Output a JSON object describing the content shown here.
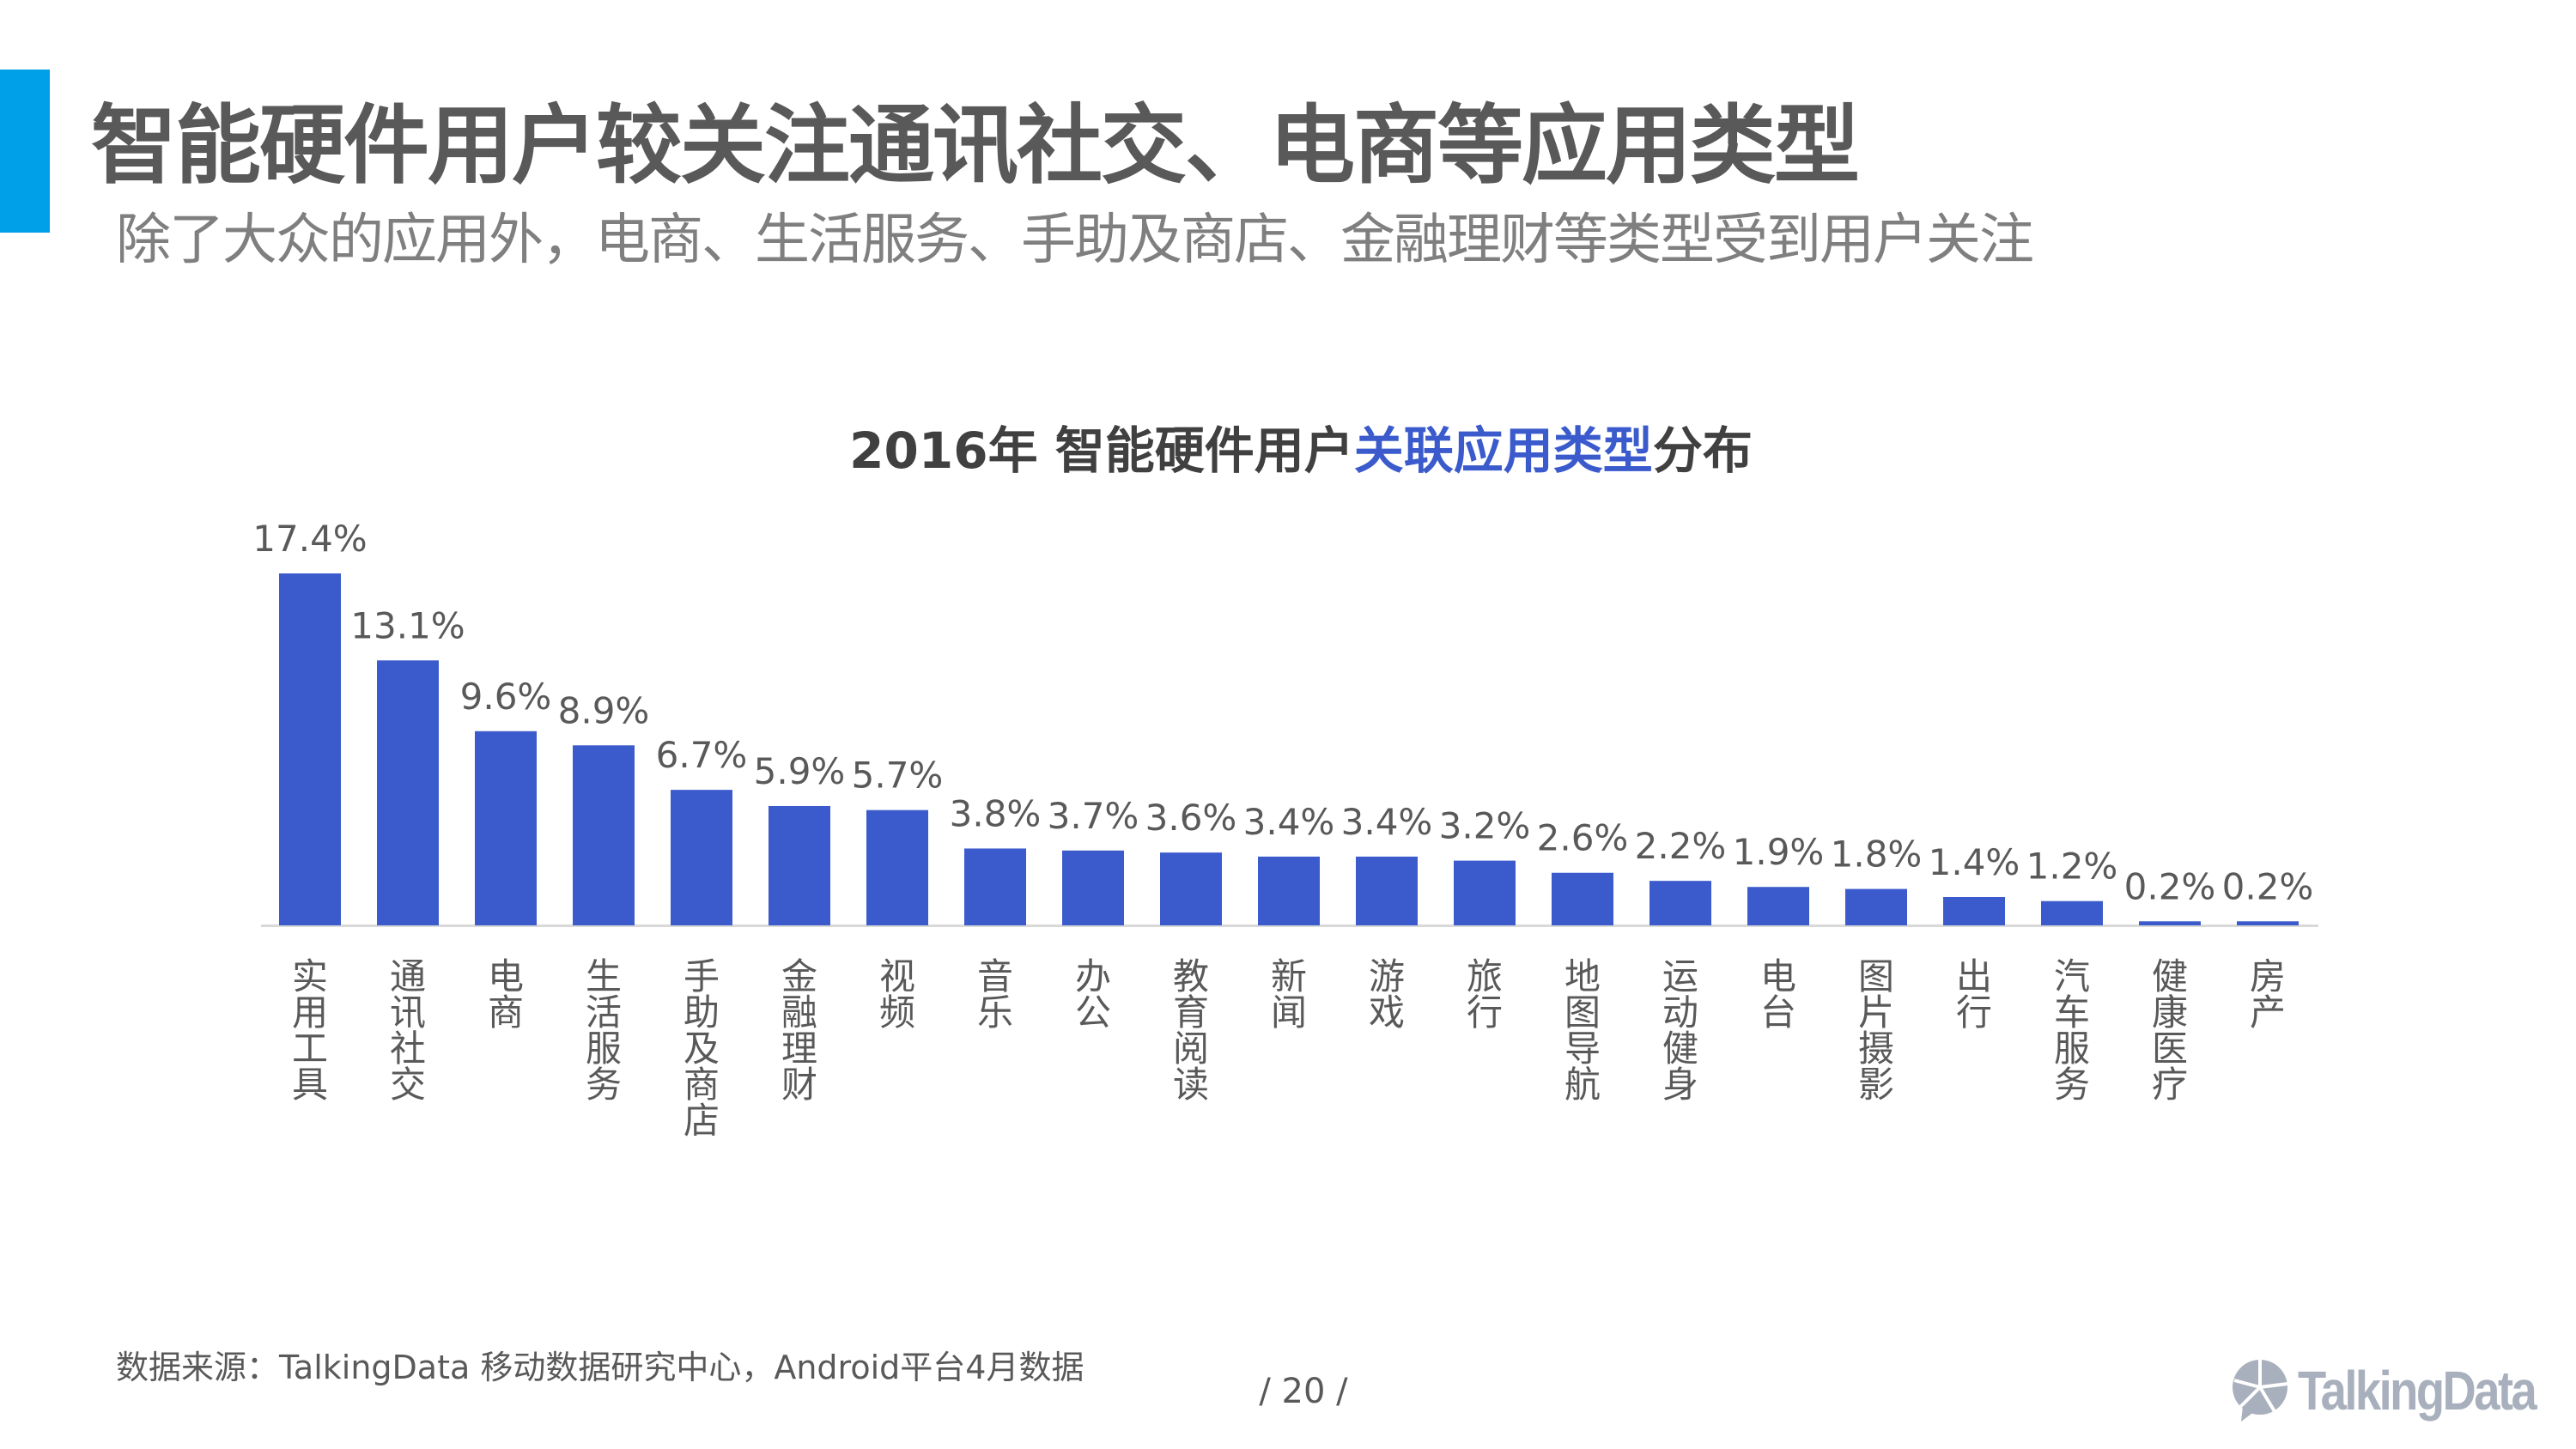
{
  "header": {
    "title": "智能硬件用户较关注通讯社交、电商等应用类型",
    "subtitle": "除了大众的应用外，电商、生活服务、手助及商店、金融理财等类型受到用户关注",
    "accent_color": "#00a0e9"
  },
  "chart_data": {
    "type": "bar",
    "title_parts": [
      "2016年 智能硬件用户",
      "关联应用类型",
      "分布"
    ],
    "categories": [
      "实用工具",
      "通讯社交",
      "电商",
      "生活服务",
      "手助及商店",
      "金融理财",
      "视频",
      "音乐",
      "办公",
      "教育阅读",
      "新闻",
      "游戏",
      "旅行",
      "地图导航",
      "运动健身",
      "电台",
      "图片摄影",
      "出行",
      "汽车服务",
      "健康医疗",
      "房产"
    ],
    "values": [
      17.4,
      13.1,
      9.6,
      8.9,
      6.7,
      5.9,
      5.7,
      3.8,
      3.7,
      3.6,
      3.4,
      3.4,
      3.2,
      2.6,
      2.2,
      1.9,
      1.8,
      1.4,
      1.2,
      0.2,
      0.2
    ],
    "labels": [
      "17.4%",
      "13.1%",
      "9.6%",
      "8.9%",
      "6.7%",
      "5.9%",
      "5.7%",
      "3.8%",
      "3.7%",
      "3.6%",
      "3.4%",
      "3.4%",
      "3.2%",
      "2.6%",
      "2.2%",
      "1.9%",
      "1.8%",
      "1.4%",
      "1.2%",
      "0.2%",
      "0.2%"
    ],
    "unit": "%",
    "bar_color": "#3b5bcc",
    "highlight_color": "#3b5bcc",
    "grid": false,
    "legend": "none"
  },
  "footer": {
    "source": "数据来源：TalkingData 移动数据研究中心，Android平台4月数据",
    "page": "/  20  /",
    "logo": "TalkingData"
  }
}
